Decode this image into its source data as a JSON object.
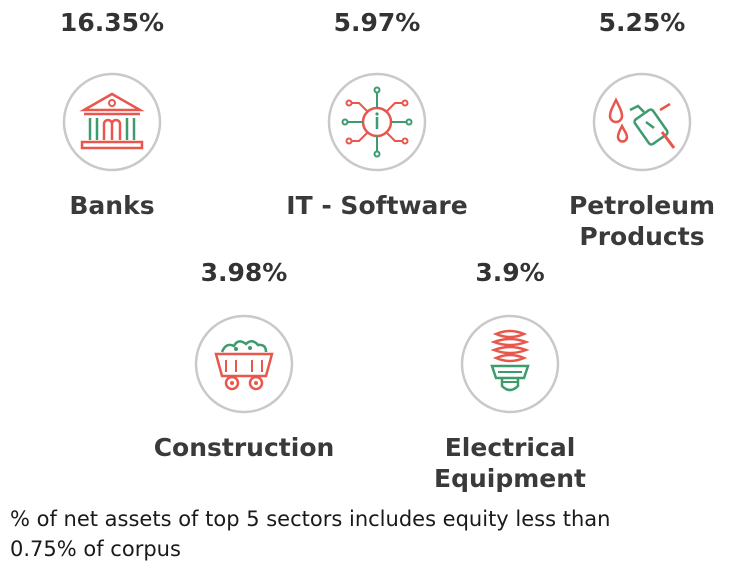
{
  "sectors": [
    {
      "percent": "16.35%",
      "label_lines": [
        "Banks"
      ],
      "icon": "bank-icon"
    },
    {
      "percent": "5.97%",
      "label_lines": [
        "IT - Software"
      ],
      "icon": "circuit-chip-icon"
    },
    {
      "percent": "5.25%",
      "label_lines": [
        "Petroleum",
        "Products"
      ],
      "icon": "fuel-nozzle-icon"
    },
    {
      "percent": "3.98%",
      "label_lines": [
        "Construction"
      ],
      "icon": "mine-cart-icon"
    },
    {
      "percent": "3.9%",
      "label_lines": [
        "Electrical",
        "Equipment"
      ],
      "icon": "light-bulb-icon"
    }
  ],
  "footnote": {
    "lines": [
      "% of net assets of top 5 sectors includes equity less than",
      "0.75% of corpus"
    ]
  },
  "colors": {
    "icon_red": "#e8564c",
    "icon_green": "#3d9b6e",
    "circle_grey": "#c9c9c9",
    "text": "#3a3a3a"
  }
}
